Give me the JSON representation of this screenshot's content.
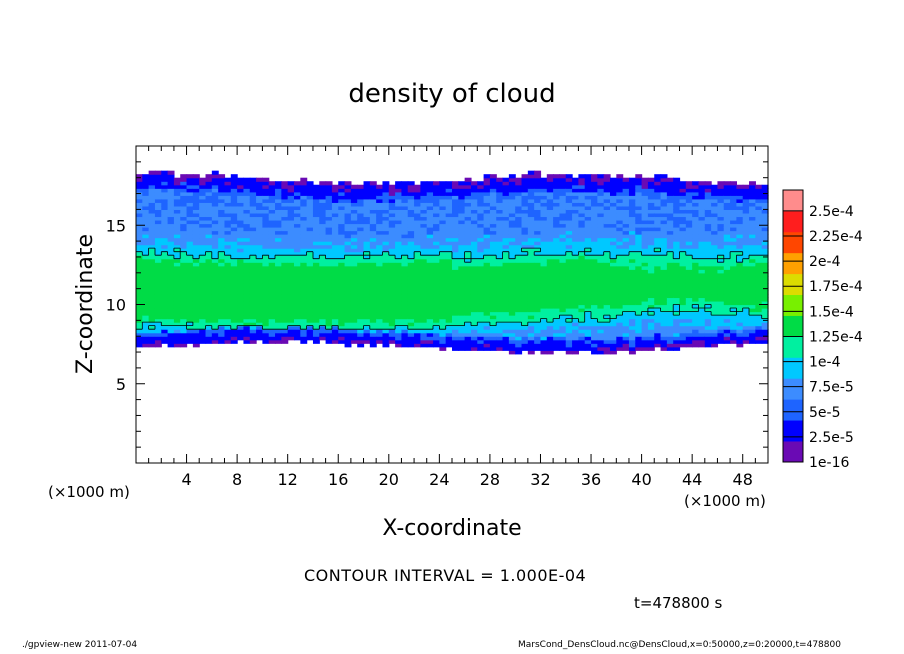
{
  "chart_data": {
    "type": "heatmap",
    "title": "density of cloud",
    "xlabel": "X-coordinate",
    "ylabel": "Z-coordinate",
    "x_unit": "(×1000 m)",
    "z_unit": "(×1000 m)",
    "xlim": [
      0,
      50
    ],
    "ylim": [
      0,
      20
    ],
    "x_ticks": [
      4,
      8,
      12,
      16,
      20,
      24,
      28,
      32,
      36,
      40,
      44,
      48
    ],
    "y_ticks": [
      5,
      10,
      15
    ],
    "colorbar": {
      "labels": [
        "1e-16",
        "2.5e-5",
        "5e-5",
        "7.5e-5",
        "1e-4",
        "1.25e-4",
        "1.5e-4",
        "1.75e-4",
        "2e-4",
        "2.25e-4",
        "2.5e-4"
      ],
      "colors": [
        "#6a0ab4",
        "#0000ff",
        "#1e64ff",
        "#3c8cff",
        "#00c8ff",
        "#00f0a0",
        "#00dc46",
        "#78f000",
        "#dcdc00",
        "#ffa000",
        "#ff4600",
        "#ff1e1e",
        "#ff8c8c"
      ]
    },
    "cloud_layer": {
      "z_bottom_km": 7.3,
      "z_top_km": 18.2,
      "dense_core_z_km": [
        9.8,
        12.2
      ],
      "dense_core_x_km": [
        0,
        25
      ],
      "contour_level": 0.0001
    }
  },
  "annotations": {
    "contour_interval": "CONTOUR INTERVAL = 1.000E-04",
    "time": "t=478800 s"
  },
  "footer": {
    "left": "./gpview-new  2011-07-04",
    "right": "MarsCond_DensCloud.nc@DensCloud,x=0:50000,z=0:20000,t=478800"
  }
}
